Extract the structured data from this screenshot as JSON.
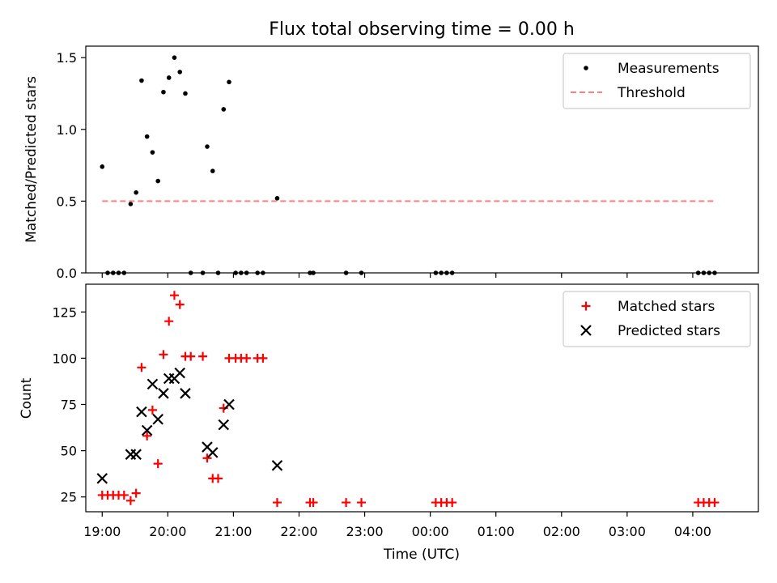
{
  "chart_data": {
    "title": "Flux total observing time = 0.00 h",
    "xlabel": "Time (UTC)",
    "x_ticks": [
      "19:00",
      "20:00",
      "21:00",
      "22:00",
      "23:00",
      "00:00",
      "01:00",
      "02:00",
      "03:00",
      "04:00"
    ],
    "x_range": [
      "18:45",
      "05:00"
    ],
    "panels": [
      {
        "type": "scatter",
        "ylabel": "Matched/Predicted stars",
        "ylim": [
          0,
          1.58
        ],
        "y_ticks": [
          "0.0",
          "0.5",
          "1.0",
          "1.5"
        ],
        "y_tick_values": [
          0,
          0.5,
          1.0,
          1.5
        ],
        "legend_position": "top-right",
        "series": [
          {
            "name": "Measurements",
            "marker": "dot",
            "color": "#000000",
            "points": [
              {
                "x": "19:00",
                "y": 0.74
              },
              {
                "x": "19:05",
                "y": 0.0
              },
              {
                "x": "19:10",
                "y": 0.0
              },
              {
                "x": "19:15",
                "y": 0.0
              },
              {
                "x": "19:20",
                "y": 0.0
              },
              {
                "x": "19:26",
                "y": 0.48
              },
              {
                "x": "19:31",
                "y": 0.56
              },
              {
                "x": "19:36",
                "y": 1.34
              },
              {
                "x": "19:41",
                "y": 0.95
              },
              {
                "x": "19:46",
                "y": 0.84
              },
              {
                "x": "19:51",
                "y": 0.64
              },
              {
                "x": "19:56",
                "y": 1.26
              },
              {
                "x": "20:01",
                "y": 1.36
              },
              {
                "x": "20:06",
                "y": 1.5
              },
              {
                "x": "20:11",
                "y": 1.4
              },
              {
                "x": "20:16",
                "y": 1.25
              },
              {
                "x": "20:21",
                "y": 0.0
              },
              {
                "x": "20:32",
                "y": 0.0
              },
              {
                "x": "20:36",
                "y": 0.88
              },
              {
                "x": "20:41",
                "y": 0.71
              },
              {
                "x": "20:46",
                "y": 0.0
              },
              {
                "x": "20:51",
                "y": 1.14
              },
              {
                "x": "20:56",
                "y": 1.33
              },
              {
                "x": "21:02",
                "y": 0.0
              },
              {
                "x": "21:07",
                "y": 0.0
              },
              {
                "x": "21:12",
                "y": 0.0
              },
              {
                "x": "21:22",
                "y": 0.0
              },
              {
                "x": "21:27",
                "y": 0.0
              },
              {
                "x": "21:40",
                "y": 0.52
              },
              {
                "x": "22:10",
                "y": 0.0
              },
              {
                "x": "22:13",
                "y": 0.0
              },
              {
                "x": "22:43",
                "y": 0.0
              },
              {
                "x": "22:57",
                "y": 0.0
              },
              {
                "x": "00:05",
                "y": 0.0
              },
              {
                "x": "00:10",
                "y": 0.0
              },
              {
                "x": "00:15",
                "y": 0.0
              },
              {
                "x": "00:20",
                "y": 0.0
              },
              {
                "x": "04:05",
                "y": 0.0
              },
              {
                "x": "04:10",
                "y": 0.0
              },
              {
                "x": "04:15",
                "y": 0.0
              },
              {
                "x": "04:20",
                "y": 0.0
              }
            ]
          },
          {
            "name": "Threshold",
            "type": "line",
            "style": "dashed",
            "color": "#ff7f7f",
            "points": [
              {
                "x": "19:00",
                "y": 0.5
              },
              {
                "x": "04:20",
                "y": 0.5
              }
            ]
          }
        ]
      },
      {
        "type": "scatter",
        "ylabel": "Count",
        "ylim": [
          17,
          140
        ],
        "y_ticks": [
          "25",
          "50",
          "75",
          "100",
          "125"
        ],
        "y_tick_values": [
          25,
          50,
          75,
          100,
          125
        ],
        "legend_position": "top-right",
        "series": [
          {
            "name": "Matched stars",
            "marker": "plus",
            "color": "#ff0000",
            "points": [
              {
                "x": "19:00",
                "y": 26
              },
              {
                "x": "19:05",
                "y": 26
              },
              {
                "x": "19:10",
                "y": 26
              },
              {
                "x": "19:15",
                "y": 26
              },
              {
                "x": "19:20",
                "y": 26
              },
              {
                "x": "19:26",
                "y": 23
              },
              {
                "x": "19:31",
                "y": 27
              },
              {
                "x": "19:36",
                "y": 95
              },
              {
                "x": "19:41",
                "y": 58
              },
              {
                "x": "19:46",
                "y": 72
              },
              {
                "x": "19:51",
                "y": 43
              },
              {
                "x": "19:56",
                "y": 102
              },
              {
                "x": "20:01",
                "y": 120
              },
              {
                "x": "20:06",
                "y": 134
              },
              {
                "x": "20:11",
                "y": 129
              },
              {
                "x": "20:16",
                "y": 101
              },
              {
                "x": "20:21",
                "y": 101
              },
              {
                "x": "20:32",
                "y": 101
              },
              {
                "x": "20:36",
                "y": 46
              },
              {
                "x": "20:41",
                "y": 35
              },
              {
                "x": "20:46",
                "y": 35
              },
              {
                "x": "20:51",
                "y": 73
              },
              {
                "x": "20:56",
                "y": 100
              },
              {
                "x": "21:02",
                "y": 100
              },
              {
                "x": "21:07",
                "y": 100
              },
              {
                "x": "21:12",
                "y": 100
              },
              {
                "x": "21:22",
                "y": 100
              },
              {
                "x": "21:27",
                "y": 100
              },
              {
                "x": "21:40",
                "y": 22
              },
              {
                "x": "22:10",
                "y": 22
              },
              {
                "x": "22:13",
                "y": 22
              },
              {
                "x": "22:43",
                "y": 22
              },
              {
                "x": "22:57",
                "y": 22
              },
              {
                "x": "00:05",
                "y": 22
              },
              {
                "x": "00:10",
                "y": 22
              },
              {
                "x": "00:15",
                "y": 22
              },
              {
                "x": "00:20",
                "y": 22
              },
              {
                "x": "04:05",
                "y": 22
              },
              {
                "x": "04:10",
                "y": 22
              },
              {
                "x": "04:15",
                "y": 22
              },
              {
                "x": "04:20",
                "y": 22
              }
            ]
          },
          {
            "name": "Predicted stars",
            "marker": "x",
            "color": "#000000",
            "points": [
              {
                "x": "19:00",
                "y": 35
              },
              {
                "x": "19:26",
                "y": 48
              },
              {
                "x": "19:31",
                "y": 48
              },
              {
                "x": "19:36",
                "y": 71
              },
              {
                "x": "19:41",
                "y": 61
              },
              {
                "x": "19:46",
                "y": 86
              },
              {
                "x": "19:51",
                "y": 67
              },
              {
                "x": "19:56",
                "y": 81
              },
              {
                "x": "20:01",
                "y": 89
              },
              {
                "x": "20:06",
                "y": 89
              },
              {
                "x": "20:11",
                "y": 92
              },
              {
                "x": "20:16",
                "y": 81
              },
              {
                "x": "20:36",
                "y": 52
              },
              {
                "x": "20:41",
                "y": 49
              },
              {
                "x": "20:51",
                "y": 64
              },
              {
                "x": "20:56",
                "y": 75
              },
              {
                "x": "21:40",
                "y": 42
              }
            ]
          }
        ]
      }
    ]
  }
}
